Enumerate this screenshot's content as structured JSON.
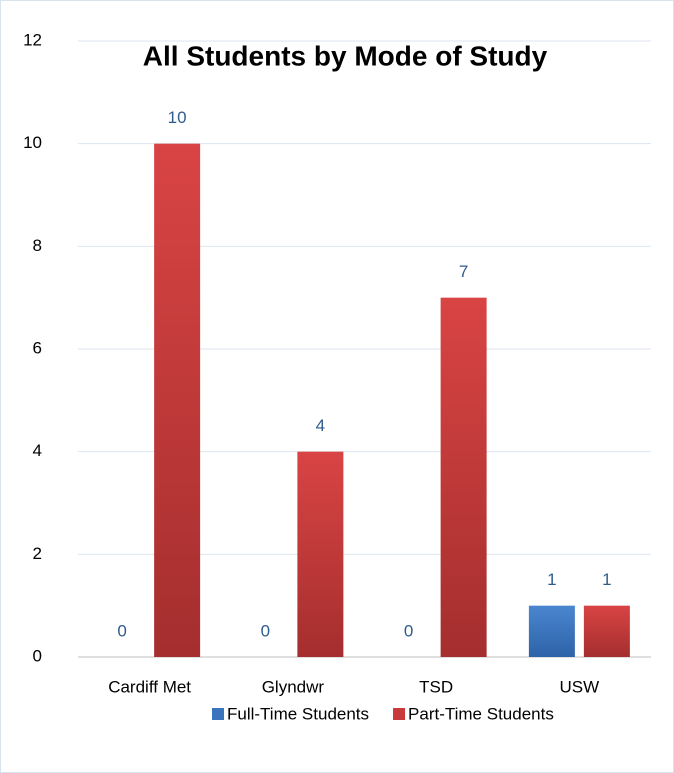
{
  "chart_data": {
    "type": "bar",
    "title": "All Students by Mode of Study",
    "categories": [
      "Cardiff Met",
      "Glyndwr",
      "TSD",
      "USW"
    ],
    "series": [
      {
        "name": "Full-Time Students",
        "color": "#3a74bd",
        "values": [
          0,
          0,
          0,
          1
        ]
      },
      {
        "name": "Part-Time Students",
        "color": "#c93a3a",
        "values": [
          10,
          4,
          7,
          1
        ]
      }
    ],
    "ylim": [
      0,
      12
    ],
    "yticks": [
      0,
      2,
      4,
      6,
      8,
      10,
      12
    ],
    "grid": true,
    "legend": "bottom"
  }
}
